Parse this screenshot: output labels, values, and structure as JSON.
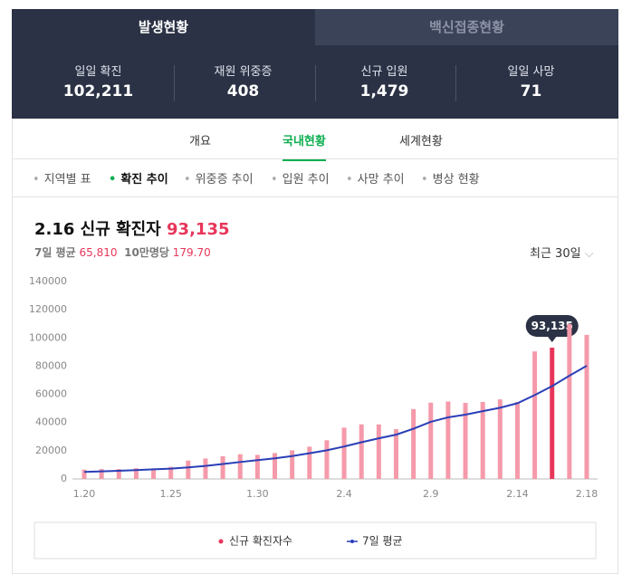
{
  "header": {
    "tabs": [
      "발생현황",
      "백신접종현황"
    ],
    "stats": [
      {
        "label": "일일 확진",
        "value": "102,211"
      },
      {
        "label": "재원 위중증",
        "value": "408"
      },
      {
        "label": "신규 입원",
        "value": "1,479"
      },
      {
        "label": "일일 사망",
        "value": "71"
      }
    ]
  },
  "nav": {
    "tabs": [
      "개요",
      "국내현황",
      "세계현황"
    ],
    "subtabs": [
      "지역별 표",
      "확진 추이",
      "위중증 추이",
      "입원 추이",
      "사망 추이",
      "병상 현황"
    ]
  },
  "summary": {
    "title": "2.16 신규 확진자",
    "title_value": "93,135",
    "avg_label": "7일 평균",
    "avg_value": "65,810",
    "per_label": "10만명당",
    "per_value": "179.70",
    "range": "최근 30일"
  },
  "chart_data": {
    "type": "bar",
    "categories": [
      "1.20",
      null,
      null,
      null,
      null,
      "1.25",
      null,
      null,
      null,
      null,
      "1.30",
      null,
      null,
      null,
      null,
      "2.4",
      null,
      null,
      null,
      null,
      "2.9",
      null,
      null,
      null,
      null,
      "2.14",
      null,
      null,
      null,
      "2.18"
    ],
    "series": [
      {
        "name": "신규 확진자수",
        "type": "bar",
        "color": "#f59aaa",
        "highlight_color": "#e8365a",
        "values": [
          6601,
          7009,
          7008,
          7629,
          7513,
          8571,
          13012,
          14518,
          16096,
          17542,
          17079,
          18342,
          20270,
          22907,
          27443,
          36362,
          38691,
          38689,
          35286,
          49567,
          54122,
          54941,
          53926,
          54619,
          56431,
          54538,
          90443,
          93135,
          109831,
          102211
        ],
        "value_labels": [
          null,
          null,
          null,
          null,
          null,
          null,
          null,
          null,
          null,
          null,
          null,
          null,
          null,
          null,
          null,
          null,
          null,
          null,
          null,
          null,
          null,
          null,
          null,
          null,
          null,
          null,
          null,
          "93,135",
          null,
          null
        ]
      },
      {
        "name": "7일 평균",
        "type": "line",
        "color": "#2a3fb8",
        "values": [
          5000,
          5400,
          5800,
          6300,
          6800,
          7300,
          8200,
          9200,
          10600,
          12000,
          13300,
          14600,
          16200,
          18200,
          20300,
          23000,
          26000,
          28800,
          31400,
          35600,
          40500,
          43700,
          45600,
          48100,
          50500,
          53700,
          59500,
          65810,
          73200,
          80300
        ]
      }
    ],
    "ylim": [
      0,
      140000
    ],
    "yticks": [
      0,
      20000,
      40000,
      60000,
      80000,
      100000,
      120000,
      140000
    ],
    "grid": false
  }
}
